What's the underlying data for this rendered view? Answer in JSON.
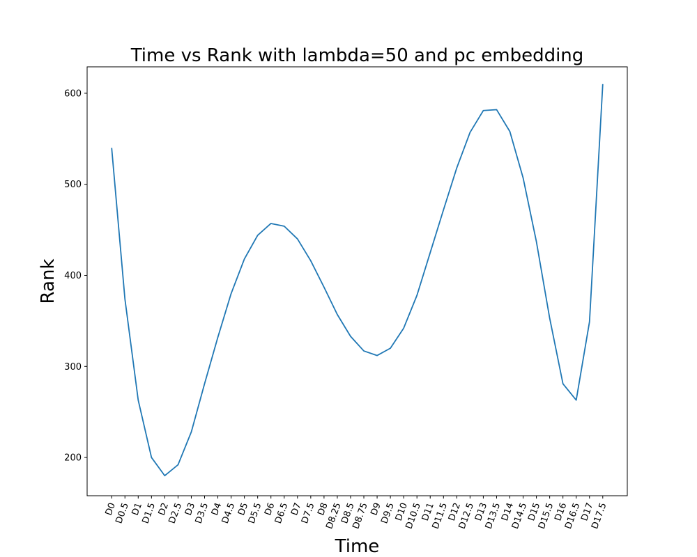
{
  "chart_data": {
    "type": "line",
    "title": "Time vs Rank with lambda=50 and pc embedding",
    "xlabel": "Time",
    "ylabel": "Rank",
    "ylim": [
      158,
      629
    ],
    "yticks": [
      200,
      300,
      400,
      500,
      600
    ],
    "grid": false,
    "color": "#1f77b4",
    "categories": [
      "D0",
      "D0.5",
      "D1",
      "D1.5",
      "D2",
      "D2.5",
      "D3",
      "D3.5",
      "D4",
      "D4.5",
      "D5",
      "D5.5",
      "D6",
      "D6.5",
      "D7",
      "D7.5",
      "D8",
      "D8.25",
      "D8.5",
      "D8.75",
      "D9",
      "D9.5",
      "D10",
      "D10.5",
      "D11",
      "D11.5",
      "D12",
      "D12.5",
      "D13",
      "D13.5",
      "D14",
      "D14.5",
      "D15",
      "D15.5",
      "D16",
      "D16.5",
      "D17",
      "D17.5"
    ],
    "series": [
      {
        "values": [
          540,
          374,
          263,
          200,
          180,
          192,
          228,
          281,
          332,
          380,
          418,
          444,
          457,
          454,
          440,
          416,
          387,
          357,
          333,
          317,
          312,
          320,
          342,
          378,
          425,
          472,
          518,
          557,
          581,
          582,
          558,
          507,
          437,
          353,
          281,
          263,
          349,
          610
        ]
      }
    ]
  }
}
